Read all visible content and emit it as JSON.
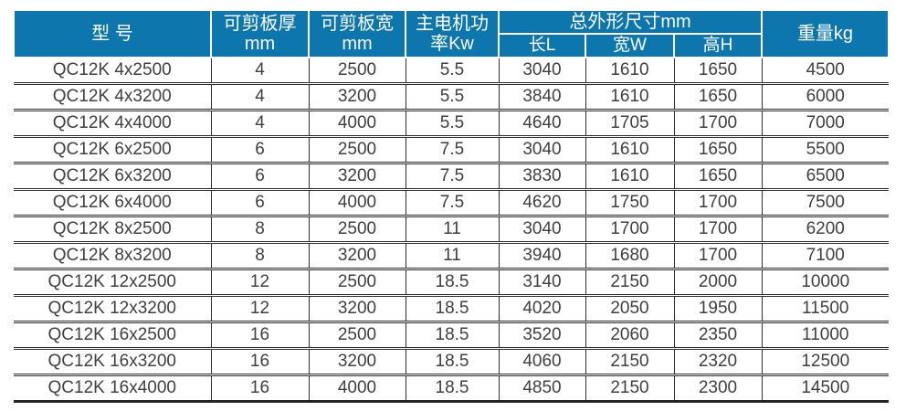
{
  "table": {
    "headers": {
      "model": "型 号",
      "thickness_label": "可剪板厚",
      "thickness_unit": "mm",
      "width_label": "可剪板宽",
      "width_unit": "mm",
      "power_line1": "主电机功",
      "power_line2": "率Kw",
      "dimensions": "总外形尺寸mm",
      "length": "长L",
      "width_w": "宽W",
      "height": "高H",
      "weight": "重量kg"
    },
    "rows": [
      [
        "QC12K 4x2500",
        "4",
        "2500",
        "5.5",
        "3040",
        "1610",
        "1650",
        "4500"
      ],
      [
        "QC12K 4x3200",
        "4",
        "3200",
        "5.5",
        "3840",
        "1610",
        "1650",
        "6000"
      ],
      [
        "QC12K 4x4000",
        "4",
        "4000",
        "5.5",
        "4640",
        "1705",
        "1700",
        "7000"
      ],
      [
        "QC12K 6x2500",
        "6",
        "2500",
        "7.5",
        "3040",
        "1610",
        "1650",
        "5500"
      ],
      [
        "QC12K 6x3200",
        "6",
        "3200",
        "7.5",
        "3830",
        "1610",
        "1650",
        "6500"
      ],
      [
        "QC12K 6x4000",
        "6",
        "4000",
        "7.5",
        "4620",
        "1750",
        "1700",
        "7500"
      ],
      [
        "QC12K 8x2500",
        "8",
        "2500",
        "11",
        "3040",
        "1700",
        "1700",
        "6200"
      ],
      [
        "QC12K 8x3200",
        "8",
        "3200",
        "11",
        "3940",
        "1680",
        "1700",
        "7100"
      ],
      [
        "QC12K 12x2500",
        "12",
        "2500",
        "18.5",
        "3140",
        "2150",
        "2000",
        "10000"
      ],
      [
        "QC12K 12x3200",
        "12",
        "3200",
        "18.5",
        "4020",
        "2050",
        "1950",
        "11500"
      ],
      [
        "QC12K 16x2500",
        "16",
        "2500",
        "18.5",
        "3520",
        "2060",
        "2350",
        "11000"
      ],
      [
        "QC12K 16x3200",
        "16",
        "3200",
        "18.5",
        "4060",
        "2150",
        "2320",
        "12500"
      ],
      [
        "QC12K 16x4000",
        "16",
        "4000",
        "18.5",
        "4850",
        "2150",
        "2300",
        "14500"
      ]
    ]
  },
  "colors": {
    "header_bg": "#0d76ad",
    "header_text": "#ffffff",
    "body_text": "#3f3f3f",
    "border": "#2e2e2e"
  }
}
